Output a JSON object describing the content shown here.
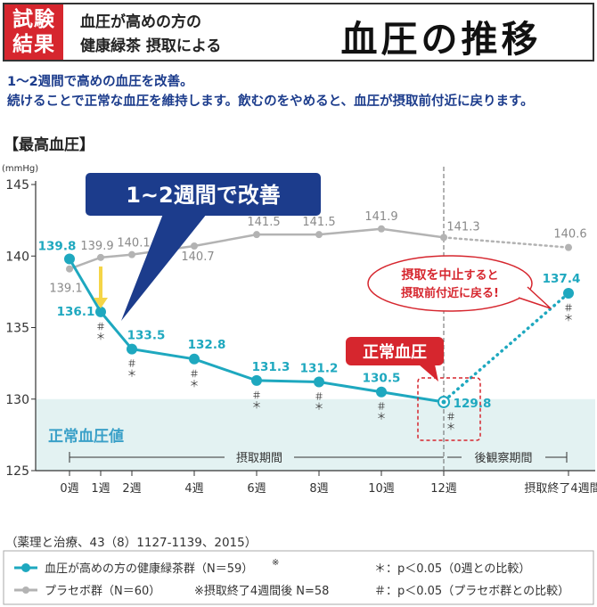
{
  "header": {
    "badge_line1": "試験",
    "badge_line2": "結果",
    "subtitle_line1": "血圧が高めの方の",
    "subtitle_line2": "健康緑茶 摂取による",
    "title": "血圧の推移"
  },
  "intro": {
    "line1": "1～2週間で高めの血圧を改善。",
    "line2": "続けることで正常な血圧を維持します。飲むのをやめると、血圧が摂取前付近に戻ります。"
  },
  "section_label": "【最高血圧】",
  "reference": "（薬理と治療、43（8）1127-1139、2015）",
  "legend": {
    "tea_label": "血圧が高めの方の健康緑茶群（N＝59）",
    "tea_mark": "※",
    "placebo_label": "プラセボ群（N＝60）",
    "note": "※摂取終了4週間後 N=58",
    "star_note": "＊：p＜0.05（0週との比較）",
    "hash_note": "＃：p＜0.05（プラセボ群との比較）"
  },
  "chart_data": {
    "type": "line",
    "ylabel": "(mmHg)",
    "ylim": [
      125,
      145
    ],
    "yticks": [
      125,
      130,
      135,
      140,
      145
    ],
    "grid": false,
    "normal_band": [
      125,
      130
    ],
    "normal_band_label": "正常血圧値",
    "x_ticks": [
      {
        "week": 0,
        "label": "0週"
      },
      {
        "week": 1,
        "label": "1週"
      },
      {
        "week": 2,
        "label": "2週"
      },
      {
        "week": 4,
        "label": "4週"
      },
      {
        "week": 6,
        "label": "6週"
      },
      {
        "week": 8,
        "label": "8週"
      },
      {
        "week": 10,
        "label": "10週"
      },
      {
        "week": 12,
        "label": "12週"
      },
      {
        "week": 16,
        "label": "摂取終了4週間後"
      }
    ],
    "period_intake_label": "摂取期間",
    "period_followup_label": "後観察期間",
    "series": [
      {
        "name": "血圧が高めの方の健康緑茶群",
        "color": "#1ea8bf",
        "points": [
          {
            "week": 0,
            "value": 139.8,
            "label": "139.8",
            "mark": ""
          },
          {
            "week": 1,
            "value": 136.1,
            "label": "136.1",
            "mark": "＃＊"
          },
          {
            "week": 2,
            "value": 133.5,
            "label": "133.5",
            "mark": "＃＊"
          },
          {
            "week": 4,
            "value": 132.8,
            "label": "132.8",
            "mark": "＃＊"
          },
          {
            "week": 6,
            "value": 131.3,
            "label": "131.3",
            "mark": "＃＊"
          },
          {
            "week": 8,
            "value": 131.2,
            "label": "131.2",
            "mark": "＃＊"
          },
          {
            "week": 10,
            "value": 130.5,
            "label": "130.5",
            "mark": "＃＊"
          },
          {
            "week": 12,
            "value": 129.8,
            "label": "129.8",
            "mark": "＃＊"
          },
          {
            "week": 16,
            "value": 137.4,
            "label": "137.4",
            "mark": "＃＊"
          }
        ]
      },
      {
        "name": "プラセボ群",
        "color": "#b3b3b3",
        "points": [
          {
            "week": 0,
            "value": 139.1,
            "label": "139.1"
          },
          {
            "week": 1,
            "value": 139.9,
            "label": "139.9"
          },
          {
            "week": 2,
            "value": 140.1,
            "label": "140.1"
          },
          {
            "week": 4,
            "value": 140.7,
            "label": "140.7"
          },
          {
            "week": 6,
            "value": 141.5,
            "label": "141.5"
          },
          {
            "week": 8,
            "value": 141.5,
            "label": "141.5"
          },
          {
            "week": 10,
            "value": 141.9,
            "label": "141.9"
          },
          {
            "week": 12,
            "value": 141.3,
            "label": "141.3"
          },
          {
            "week": 16,
            "value": 140.6,
            "label": "140.6"
          }
        ]
      }
    ],
    "callouts": {
      "improve": "1~2週間で改善",
      "normal": "正常血圧",
      "stop_line1_red": "摂取を中止",
      "stop_line1_rest": "すると",
      "stop_line2": "摂取前付近に戻る!"
    }
  }
}
